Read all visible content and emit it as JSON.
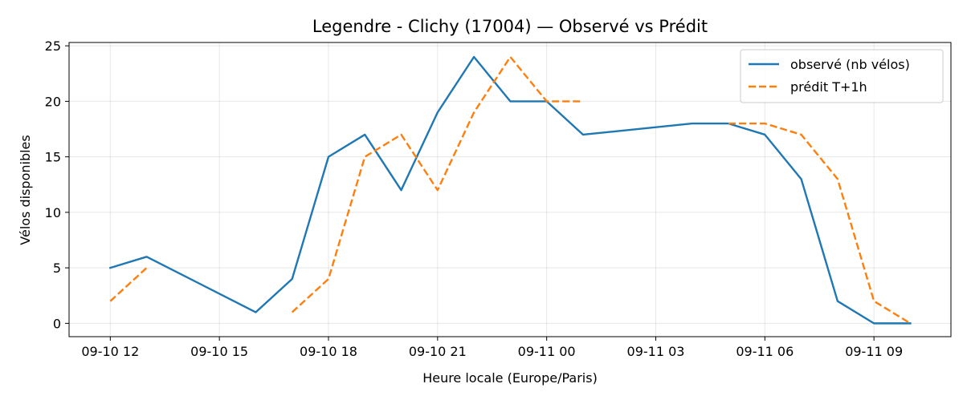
{
  "chart_data": {
    "type": "line",
    "title": "Legendre - Clichy (17004) — Observé vs Prédit",
    "xlabel": "Heure locale (Europe/Paris)",
    "ylabel": "Vélos disponibles",
    "x_ticks": [
      "09-10 12",
      "09-10 15",
      "09-10 18",
      "09-10 21",
      "09-11 00",
      "09-11 03",
      "09-11 06",
      "09-11 09"
    ],
    "y_ticks": [
      "0",
      "5",
      "10",
      "15",
      "20",
      "25"
    ],
    "xlim": [
      "2024-09-10 10:52",
      "2024-09-11 11:07"
    ],
    "ylim": [
      -1.2,
      25.3
    ],
    "grid": true,
    "legend_position": "top-right",
    "series": [
      {
        "name": "observé (nb vélos)",
        "color": "#1f77b4",
        "style": "solid",
        "points": [
          [
            "2024-09-10 12:00",
            5
          ],
          [
            "2024-09-10 13:00",
            6
          ],
          [
            "2024-09-10 16:00",
            1
          ],
          [
            "2024-09-10 17:00",
            4
          ],
          [
            "2024-09-10 18:00",
            15
          ],
          [
            "2024-09-10 19:00",
            17
          ],
          [
            "2024-09-10 20:00",
            12
          ],
          [
            "2024-09-10 21:00",
            19
          ],
          [
            "2024-09-10 22:00",
            24
          ],
          [
            "2024-09-10 23:00",
            20
          ],
          [
            "2024-09-11 00:00",
            20
          ],
          [
            "2024-09-11 01:00",
            17
          ],
          [
            "2024-09-11 04:00",
            18
          ],
          [
            "2024-09-11 05:00",
            18
          ],
          [
            "2024-09-11 06:00",
            17
          ],
          [
            "2024-09-11 07:00",
            13
          ],
          [
            "2024-09-11 08:00",
            2
          ],
          [
            "2024-09-11 09:00",
            0
          ],
          [
            "2024-09-11 10:00",
            0
          ]
        ]
      },
      {
        "name": "prédit T+1h",
        "color": "#ff7f0e",
        "style": "dashed",
        "segments": [
          [
            [
              "2024-09-10 12:00",
              2
            ],
            [
              "2024-09-10 13:00",
              5
            ]
          ],
          [
            [
              "2024-09-10 17:00",
              1
            ],
            [
              "2024-09-10 18:00",
              4
            ],
            [
              "2024-09-10 19:00",
              15
            ],
            [
              "2024-09-10 20:00",
              17
            ],
            [
              "2024-09-10 21:00",
              12
            ],
            [
              "2024-09-10 22:00",
              19
            ],
            [
              "2024-09-10 23:00",
              24
            ],
            [
              "2024-09-11 00:00",
              20
            ],
            [
              "2024-09-11 01:00",
              20
            ]
          ],
          [
            [
              "2024-09-11 05:00",
              18
            ],
            [
              "2024-09-11 06:00",
              18
            ],
            [
              "2024-09-11 07:00",
              17
            ],
            [
              "2024-09-11 08:00",
              13
            ],
            [
              "2024-09-11 09:00",
              2
            ],
            [
              "2024-09-11 10:00",
              0
            ]
          ]
        ]
      }
    ]
  }
}
